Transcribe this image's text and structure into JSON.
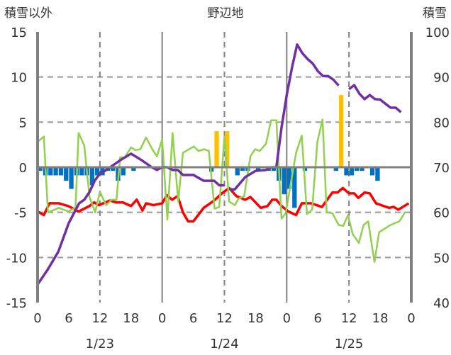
{
  "chart_data": {
    "type": "line",
    "title": "野辺地",
    "ylabel_left": "積雪以外",
    "ylabel_right": "積雪",
    "ylim_left": [
      -15,
      15
    ],
    "ylim_right": [
      40,
      100
    ],
    "yticks_left": [
      "15",
      "10",
      "5",
      "0",
      "-5",
      "-10",
      "-15"
    ],
    "yticks_right": [
      "100",
      "90",
      "80",
      "70",
      "60",
      "50",
      "40"
    ],
    "xlim_hours": [
      0,
      72
    ],
    "xticks": [
      "0",
      "6",
      "12",
      "18",
      "0",
      "6",
      "12",
      "18",
      "0",
      "6",
      "12",
      "18",
      "0"
    ],
    "dates": [
      "1/23",
      "1/24",
      "1/25"
    ],
    "grid": true,
    "bars": {
      "name": "snow_change",
      "axis": "left",
      "color_positive": "#FFC000",
      "color_negative": "#0070C0",
      "points": [
        [
          0,
          -0.4
        ],
        [
          1,
          -0.9
        ],
        [
          2,
          -0.9
        ],
        [
          3,
          -0.9
        ],
        [
          4,
          -0.9
        ],
        [
          5,
          -1.5
        ],
        [
          6,
          -2.4
        ],
        [
          7,
          -0.9
        ],
        [
          8,
          -0.9
        ],
        [
          9,
          -0.9
        ],
        [
          10,
          -2.0
        ],
        [
          11,
          -0.9
        ],
        [
          12,
          -0.9
        ],
        [
          13,
          -0.4
        ],
        [
          14,
          -0.4
        ],
        [
          15,
          -1.5
        ],
        [
          16,
          -0.9
        ],
        [
          18,
          -0.4
        ],
        [
          33,
          -0.5
        ],
        [
          34,
          4.0
        ],
        [
          36,
          4.0
        ],
        [
          38,
          -0.9
        ],
        [
          39,
          -0.4
        ],
        [
          40,
          -0.4
        ],
        [
          42,
          -0.4
        ],
        [
          44,
          -0.4
        ],
        [
          45,
          -0.4
        ],
        [
          46,
          -1.5
        ],
        [
          47,
          -3.0
        ],
        [
          48,
          -2.4
        ],
        [
          49,
          -4.5
        ],
        [
          51,
          -0.4
        ],
        [
          57,
          -0.4
        ],
        [
          58,
          8.0
        ],
        [
          59,
          -0.9
        ],
        [
          60,
          -0.9
        ],
        [
          61,
          -0.4
        ],
        [
          62,
          -0.4
        ],
        [
          64,
          -0.9
        ],
        [
          65,
          -1.5
        ]
      ]
    },
    "series": [
      {
        "name": "temperature",
        "axis": "left",
        "color": "#FF0000",
        "points": [
          [
            0,
            -4.9
          ],
          [
            1.2,
            -5.3
          ],
          [
            2.3,
            -4.0
          ],
          [
            4.1,
            -4.0
          ],
          [
            5.9,
            -4.3
          ],
          [
            7.9,
            -4.9
          ],
          [
            10,
            -4.3
          ],
          [
            10.9,
            -3.9
          ],
          [
            11.8,
            -4.2
          ],
          [
            13.9,
            -3.7
          ],
          [
            15.2,
            -3.9
          ],
          [
            16.4,
            -3.9
          ],
          [
            18,
            -4.3
          ],
          [
            19.1,
            -3.6
          ],
          [
            20.2,
            -4.8
          ],
          [
            20.9,
            -4.0
          ],
          [
            22.3,
            -4.2
          ],
          [
            24,
            -4.0
          ],
          [
            24.9,
            -3.1
          ],
          [
            25.9,
            -3.6
          ],
          [
            27,
            -3.2
          ],
          [
            28,
            -5.0
          ],
          [
            29,
            -6.0
          ],
          [
            30,
            -6.0
          ],
          [
            32,
            -4.5
          ],
          [
            34,
            -3.7
          ],
          [
            35.5,
            -2.9
          ],
          [
            36.9,
            -2.3
          ],
          [
            38.3,
            -3.2
          ],
          [
            40,
            -3.6
          ],
          [
            41,
            -3.3
          ],
          [
            43,
            -4.5
          ],
          [
            44.3,
            -4.3
          ],
          [
            45.2,
            -3.6
          ],
          [
            46,
            -3.6
          ],
          [
            47,
            -4.3
          ],
          [
            48.3,
            -4.9
          ],
          [
            49.8,
            -5.3
          ],
          [
            50.9,
            -4.0
          ],
          [
            52.7,
            -4.0
          ],
          [
            54.8,
            -4.4
          ],
          [
            56.8,
            -2.8
          ],
          [
            57.8,
            -2.8
          ],
          [
            58.8,
            -2.3
          ],
          [
            60,
            -2.9
          ],
          [
            61,
            -2.9
          ],
          [
            61.8,
            -3.4
          ],
          [
            63,
            -2.8
          ],
          [
            64,
            -2.9
          ],
          [
            65.2,
            -4.0
          ],
          [
            66.2,
            -4.2
          ],
          [
            67.7,
            -4.5
          ],
          [
            68.6,
            -4.4
          ],
          [
            69.5,
            -4.7
          ],
          [
            71.5,
            -4.0
          ]
        ]
      },
      {
        "name": "wind",
        "axis": "left",
        "color": "#92D050",
        "points": [
          [
            0,
            2.8
          ],
          [
            1.2,
            3.4
          ],
          [
            2,
            -5.0
          ],
          [
            4.1,
            -4.5
          ],
          [
            5.9,
            -4.9
          ],
          [
            7.3,
            -4.5
          ],
          [
            7.9,
            3.8
          ],
          [
            9,
            2.4
          ],
          [
            10,
            -3.3
          ],
          [
            11.1,
            -5.0
          ],
          [
            12,
            -2.7
          ],
          [
            13.2,
            -4.2
          ],
          [
            14.3,
            -3.6
          ],
          [
            15.2,
            -3.6
          ],
          [
            15.9,
            1.1
          ],
          [
            16.8,
            1.1
          ],
          [
            18,
            2.2
          ],
          [
            18.9,
            1.9
          ],
          [
            19.8,
            2.0
          ],
          [
            20.9,
            3.3
          ],
          [
            22.1,
            2.0
          ],
          [
            23,
            1.2
          ],
          [
            24,
            3.1
          ],
          [
            25,
            -5.8
          ],
          [
            26,
            3.8
          ],
          [
            27.1,
            -3.8
          ],
          [
            28,
            1.6
          ],
          [
            30.1,
            2.3
          ],
          [
            31,
            1.8
          ],
          [
            32.1,
            2.0
          ],
          [
            33,
            1.8
          ],
          [
            34.1,
            -4.6
          ],
          [
            35,
            -4.4
          ],
          [
            36,
            3.4
          ],
          [
            36.9,
            -3.8
          ],
          [
            38,
            -4.2
          ],
          [
            38.7,
            -3.5
          ],
          [
            39.8,
            -3.2
          ],
          [
            41,
            1.2
          ],
          [
            41.9,
            2.0
          ],
          [
            42.8,
            1.8
          ],
          [
            44,
            2.6
          ],
          [
            45,
            5.2
          ],
          [
            46,
            5.2
          ],
          [
            47,
            -5.7
          ],
          [
            47.8,
            -5.1
          ],
          [
            49.8,
            1.6
          ],
          [
            50.9,
            3.5
          ],
          [
            51.9,
            -5.2
          ],
          [
            52.9,
            -4.7
          ],
          [
            53.9,
            2.8
          ],
          [
            54.9,
            5.3
          ],
          [
            55.7,
            -5.0
          ],
          [
            56.8,
            -5.1
          ],
          [
            58,
            -6.4
          ],
          [
            58.9,
            -6.5
          ],
          [
            59.8,
            -5.3
          ],
          [
            60.7,
            -7.4
          ],
          [
            61.9,
            -8.4
          ],
          [
            62.8,
            -6.4
          ],
          [
            63.7,
            -6.0
          ],
          [
            64.9,
            -10.5
          ],
          [
            65.8,
            -7.2
          ],
          [
            66.9,
            -6.8
          ],
          [
            68,
            -6.4
          ],
          [
            69.7,
            -6.0
          ],
          [
            70.9,
            -4.9
          ]
        ]
      },
      {
        "name": "snow_depth",
        "axis": "right",
        "color": "#7030A0",
        "segments": [
          [
            [
              0,
              44
            ],
            [
              2,
              47.4
            ],
            [
              4,
              51.3
            ],
            [
              6,
              57.6
            ],
            [
              8,
              62
            ],
            [
              9,
              62.8
            ],
            [
              10,
              64.5
            ],
            [
              11,
              67
            ],
            [
              12,
              68.6
            ],
            [
              13,
              69.2
            ],
            [
              14,
              70
            ],
            [
              16,
              71.6
            ],
            [
              18,
              73
            ],
            [
              20,
              71.6
            ],
            [
              22,
              70
            ],
            [
              23,
              69.4
            ],
            [
              24,
              70
            ],
            [
              25,
              70
            ],
            [
              26,
              69.4
            ],
            [
              27,
              69.4
            ],
            [
              28,
              68.3
            ],
            [
              30,
              68.3
            ],
            [
              32,
              67
            ],
            [
              34,
              67
            ],
            [
              35,
              66
            ],
            [
              36,
              66
            ]
          ],
          [
            [
              37,
              65.1
            ],
            [
              38,
              65.1
            ],
            [
              40,
              67.8
            ],
            [
              42,
              69.2
            ],
            [
              44,
              69.4
            ],
            [
              45,
              70
            ],
            [
              46,
              70
            ],
            [
              47,
              78.8
            ],
            [
              48,
              86
            ],
            [
              49,
              92
            ],
            [
              50,
              97.2
            ],
            [
              51,
              95.3
            ],
            [
              52,
              94
            ],
            [
              53,
              93
            ],
            [
              54,
              91.3
            ],
            [
              55,
              90.2
            ],
            [
              56,
              90.2
            ],
            [
              57,
              89.4
            ],
            [
              58,
              88.1
            ]
          ],
          [
            [
              60,
              87.3
            ],
            [
              61,
              88.2
            ],
            [
              62,
              86.3
            ],
            [
              63,
              85.1
            ],
            [
              64,
              86
            ],
            [
              65,
              85.1
            ],
            [
              66,
              85
            ],
            [
              67,
              84.1
            ],
            [
              68,
              83.2
            ],
            [
              69,
              83.2
            ],
            [
              70,
              82.2
            ]
          ]
        ]
      }
    ]
  }
}
